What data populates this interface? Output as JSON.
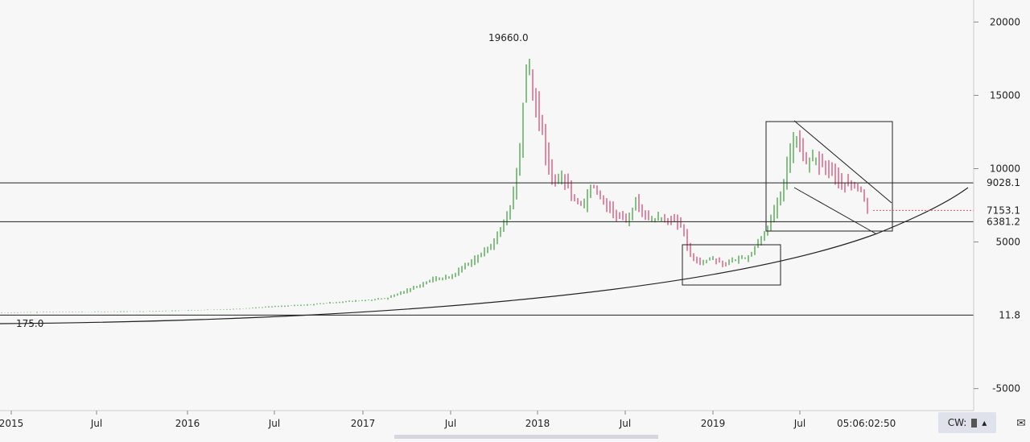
{
  "chart_data": {
    "type": "bar",
    "style": "ohlc",
    "timeframe": "weekly",
    "x_ticks": [
      "2015",
      "Jul",
      "2016",
      "Jul",
      "2017",
      "Jul",
      "2018",
      "Jul",
      "2019",
      "Jul"
    ],
    "y_ticks": [
      20000,
      15000,
      10000,
      5000,
      -5000
    ],
    "ylim": [
      -6500,
      21500
    ],
    "price_labels": [
      {
        "label": "9028.1",
        "value": 9028.1,
        "kind": "hline"
      },
      {
        "label": "7153.1",
        "value": 7153.1,
        "kind": "last"
      },
      {
        "label": "6381.2",
        "value": 6381.2,
        "kind": "hline"
      },
      {
        "label": "11.8",
        "value": 11.8,
        "kind": "hline"
      }
    ],
    "annotations": [
      {
        "text": "19660.0"
      },
      {
        "text": "175.0"
      }
    ],
    "countdown": "05:06:02:50",
    "colors": {
      "up": "#3a9a3a",
      "down": "#d0406a",
      "lines": "#222222",
      "last_price": "#e05070"
    },
    "grid": false
  },
  "status": {
    "label": "CW:"
  }
}
